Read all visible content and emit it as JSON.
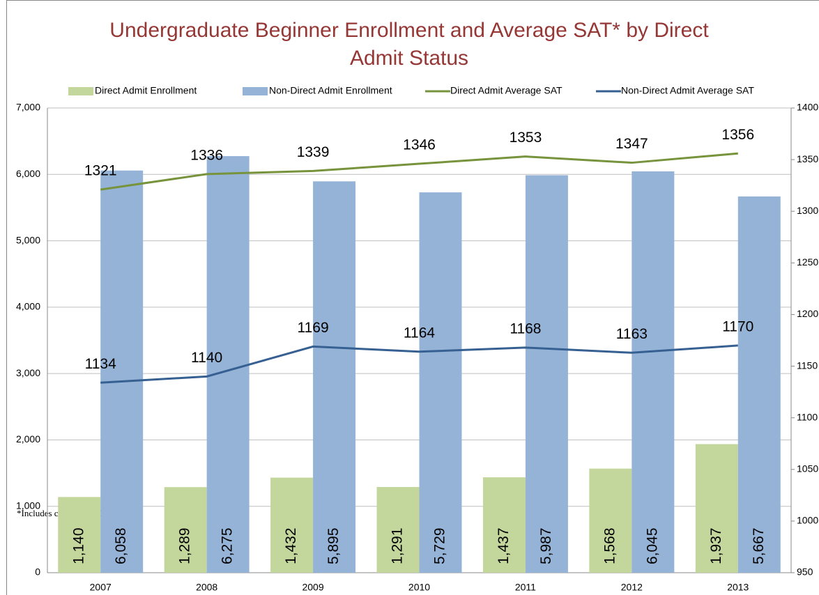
{
  "chart_data": {
    "type": "bar",
    "title": [
      "Undergraduate Beginner Enrollment and Average SAT* by Direct",
      "Admit Status"
    ],
    "footnote": "*Includes converted ACT scores",
    "categories": [
      "2007",
      "2008",
      "2009",
      "2010",
      "2011",
      "2012",
      "2013"
    ],
    "series": [
      {
        "name": "Direct Admit Enrollment",
        "type": "bar",
        "color": "#c3d69b",
        "values": [
          1140,
          1289,
          1432,
          1291,
          1437,
          1568,
          1937
        ],
        "value_labels": [
          "1,140",
          "1,289",
          "1,432",
          "1,291",
          "1,437",
          "1,568",
          "1,937"
        ]
      },
      {
        "name": "Non-Direct Admit Enrollment",
        "type": "bar",
        "color": "#95b3d7",
        "values": [
          6058,
          6275,
          5895,
          5729,
          5987,
          6045,
          5667
        ],
        "value_labels": [
          "6,058",
          "6,275",
          "5,895",
          "5,729",
          "5,987",
          "6,045",
          "5,667"
        ]
      },
      {
        "name": "Direct Admit Average SAT",
        "type": "line",
        "axis": "y2",
        "color": "#77933c",
        "values": [
          1321,
          1336,
          1339,
          1346,
          1353,
          1347,
          1356
        ]
      },
      {
        "name": "Non-Direct Admit Average SAT",
        "type": "line",
        "axis": "y2",
        "color": "#376092",
        "values": [
          1134,
          1140,
          1169,
          1164,
          1168,
          1163,
          1170
        ]
      }
    ],
    "ylim": [
      0,
      7000
    ],
    "yticks": [
      0,
      {
        "value": 1000,
        "label": "1,000"
      },
      {
        "value": 2000,
        "label": "2,000"
      },
      {
        "value": 3000,
        "label": "3,000"
      },
      {
        "value": 4000,
        "label": "4,000"
      },
      {
        "value": 5000,
        "label": "5,000"
      },
      {
        "value": 6000,
        "label": "6,000"
      },
      {
        "value": 7000,
        "label": "7,000"
      }
    ],
    "y2lim": [
      950,
      1400
    ],
    "y2ticks": [
      950,
      1000,
      1050,
      1100,
      1150,
      1200,
      1250,
      1300,
      1350,
      1400
    ],
    "grid": true,
    "legend": "top"
  }
}
